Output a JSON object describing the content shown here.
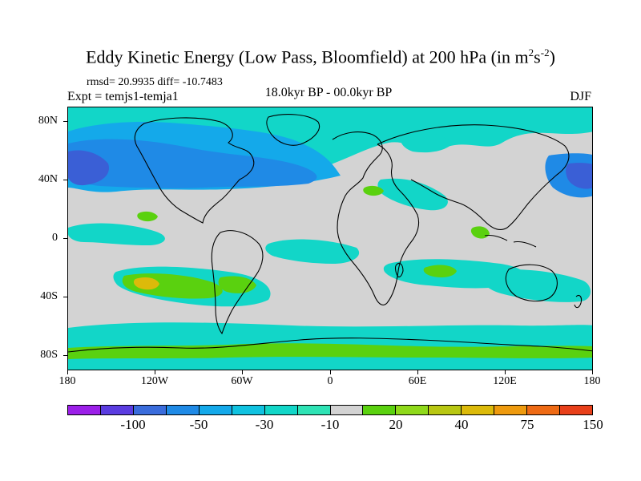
{
  "header": {
    "title_main": "Eddy Kinetic Energy (Low Pass, Bloomfield) at 200 hPa (in m",
    "title_sup1": "2",
    "title_s": "s",
    "title_sup2": "-2",
    "title_end": ")",
    "stats": "rmsd= 20.9935  diff= -10.7483",
    "expt": "Expt = temjs1-temja1",
    "period": "18.0kyr BP - 00.0kyr BP",
    "season": "DJF"
  },
  "map": {
    "lat_labels": [
      "80N",
      "40N",
      "0",
      "40S",
      "80S"
    ],
    "lon_labels": [
      "180",
      "120W",
      "60W",
      "0",
      "60E",
      "120E",
      "180"
    ]
  },
  "colorbar": {
    "colors": [
      "#9b1fe8",
      "#5a3ce0",
      "#3a6cdc",
      "#1f8ae6",
      "#14a9ea",
      "#10c2e0",
      "#12d6c8",
      "#2ee3b5",
      "#d3d3d3",
      "#5ad10f",
      "#8fd91a",
      "#b8c712",
      "#dcba0a",
      "#ee9a0e",
      "#ee6a14",
      "#e8401a"
    ],
    "labels": [
      "-100",
      "-50",
      "-30",
      "-10",
      "20",
      "40",
      "75",
      "150"
    ]
  },
  "colors": {
    "background": "#d3d3d3",
    "blue_dark": "#3a5fd6",
    "blue_mid": "#1f8ae6",
    "blue_light": "#14a9ea",
    "cyan": "#12d6c8",
    "green": "#5ad10f",
    "orange": "#dcba0a",
    "coast": "#000000"
  }
}
